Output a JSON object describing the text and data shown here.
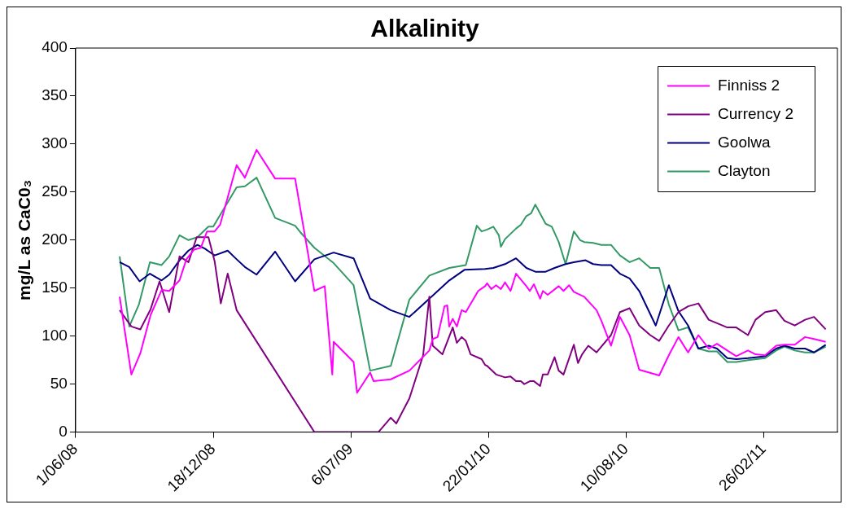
{
  "chart_data": {
    "type": "line",
    "title": "Alkalinity",
    "ylabel": "mg/L as CaC0₃",
    "xlim": [
      "2008-06-01",
      "2011-06-13"
    ],
    "xticks": [
      {
        "value": "2008-06-01",
        "label": "1/06/08"
      },
      {
        "value": "2008-12-18",
        "label": "18/12/08"
      },
      {
        "value": "2009-07-06",
        "label": "6/07/09"
      },
      {
        "value": "2010-01-22",
        "label": "22/01/10"
      },
      {
        "value": "2010-08-10",
        "label": "10/08/10"
      },
      {
        "value": "2011-02-26",
        "label": "26/02/11"
      }
    ],
    "ylim": [
      0,
      400
    ],
    "yticks": [
      0,
      50,
      100,
      150,
      200,
      250,
      300,
      350,
      400
    ],
    "grid": false,
    "legend": "top right",
    "marker": "none",
    "line_style": "solid",
    "series": [
      {
        "name": "Finniss 2",
        "color": "#ff00ff",
        "x": [
          "2008-08-04",
          "2008-08-21",
          "2008-09-03",
          "2008-09-18",
          "2008-10-04",
          "2008-10-15",
          "2008-10-30",
          "2008-11-09",
          "2008-11-20",
          "2008-11-30",
          "2008-12-09",
          "2008-12-20",
          "2008-12-28",
          "2009-01-21",
          "2009-02-02",
          "2009-02-19",
          "2009-03-18",
          "2009-04-16",
          "2009-05-14",
          "2009-05-29",
          "2009-06-09",
          "2009-06-11",
          "2009-07-10",
          "2009-07-15",
          "2009-08-03",
          "2009-08-08",
          "2009-09-02",
          "2009-09-29",
          "2009-10-28",
          "2009-11-02",
          "2009-11-09",
          "2009-11-19",
          "2009-11-23",
          "2009-11-26",
          "2009-12-01",
          "2009-12-07",
          "2009-12-14",
          "2009-12-20",
          "2010-01-07",
          "2010-01-17",
          "2010-01-20",
          "2010-01-26",
          "2010-02-02",
          "2010-02-09",
          "2010-02-15",
          "2010-02-23",
          "2010-03-03",
          "2010-03-18",
          "2010-03-23",
          "2010-03-29",
          "2010-04-07",
          "2010-04-11",
          "2010-04-18",
          "2010-05-04",
          "2010-05-11",
          "2010-05-19",
          "2010-05-26",
          "2010-06-10",
          "2010-06-28",
          "2010-07-05",
          "2010-07-19",
          "2010-08-01",
          "2010-08-15",
          "2010-08-29",
          "2010-09-27",
          "2010-10-11",
          "2010-10-25",
          "2010-11-08",
          "2010-11-23",
          "2010-12-08",
          "2010-12-20",
          "2011-01-04",
          "2011-01-17",
          "2011-02-03",
          "2011-02-14",
          "2011-02-28",
          "2011-03-16",
          "2011-03-28",
          "2011-04-12",
          "2011-04-27",
          "2011-05-10",
          "2011-05-27"
        ],
        "values": [
          141,
          60,
          82,
          122,
          148,
          147,
          158,
          180,
          190,
          192,
          209,
          209,
          216,
          278,
          265,
          294,
          264,
          264,
          147,
          152,
          60,
          94,
          73,
          41,
          62,
          53,
          55,
          64,
          85,
          97,
          99,
          131,
          132,
          110,
          118,
          110,
          127,
          125,
          147,
          152,
          155,
          149,
          153,
          149,
          156,
          147,
          165,
          152,
          147,
          154,
          139,
          147,
          143,
          152,
          147,
          153,
          146,
          141,
          127,
          116,
          90,
          120,
          101,
          65,
          59,
          80,
          99,
          83,
          101,
          87,
          92,
          85,
          79,
          85,
          81,
          80,
          90,
          91,
          91,
          99,
          97,
          94
        ]
      },
      {
        "name": "Currency 2",
        "color": "#800080",
        "x": [
          "2008-08-04",
          "2008-08-21",
          "2008-09-03",
          "2008-09-18",
          "2008-10-01",
          "2008-10-15",
          "2008-10-30",
          "2008-11-12",
          "2008-11-24",
          "2008-12-11",
          "2008-12-20",
          "2008-12-29",
          "2009-01-08",
          "2009-01-21",
          "2009-05-14",
          "2009-08-15",
          "2009-09-02",
          "2009-09-10",
          "2009-09-29",
          "2009-10-19",
          "2009-10-28",
          "2009-11-02",
          "2009-11-16",
          "2009-12-01",
          "2009-12-07",
          "2009-12-14",
          "2009-12-20",
          "2009-12-27",
          "2010-01-12",
          "2010-01-17",
          "2010-01-20",
          "2010-02-02",
          "2010-02-15",
          "2010-02-23",
          "2010-03-03",
          "2010-03-10",
          "2010-03-15",
          "2010-03-23",
          "2010-03-29",
          "2010-04-07",
          "2010-04-11",
          "2010-04-18",
          "2010-04-28",
          "2010-05-04",
          "2010-05-11",
          "2010-05-26",
          "2010-06-01",
          "2010-06-07",
          "2010-06-16",
          "2010-06-28",
          "2010-07-19",
          "2010-08-01",
          "2010-08-15",
          "2010-08-29",
          "2010-09-14",
          "2010-09-27",
          "2010-10-11",
          "2010-10-25",
          "2010-11-08",
          "2010-11-23",
          "2010-12-08",
          "2011-01-04",
          "2011-01-17",
          "2011-02-03",
          "2011-02-14",
          "2011-02-28",
          "2011-03-16",
          "2011-03-28",
          "2011-04-12",
          "2011-04-27",
          "2011-05-10",
          "2011-05-27"
        ],
        "values": [
          127,
          110,
          107,
          128,
          157,
          125,
          183,
          177,
          203,
          203,
          178,
          134,
          165,
          127,
          0,
          0,
          15,
          9,
          35,
          80,
          141,
          90,
          81,
          109,
          93,
          99,
          95,
          81,
          76,
          70,
          69,
          60,
          57,
          58,
          53,
          53,
          50,
          53,
          53,
          48,
          60,
          60,
          78,
          64,
          60,
          91,
          72,
          81,
          90,
          83,
          101,
          125,
          129,
          111,
          101,
          95,
          111,
          125,
          131,
          134,
          117,
          109,
          109,
          101,
          117,
          125,
          127,
          116,
          111,
          117,
          120,
          107
        ]
      },
      {
        "name": "Goolwa",
        "color": "#000080",
        "x": [
          "2008-08-04",
          "2008-08-18",
          "2008-09-02",
          "2008-09-17",
          "2008-10-04",
          "2008-10-15",
          "2008-10-30",
          "2008-11-12",
          "2008-11-25",
          "2008-12-06",
          "2008-12-20",
          "2009-01-08",
          "2009-01-21",
          "2009-02-02",
          "2009-02-19",
          "2009-03-18",
          "2009-04-16",
          "2009-05-14",
          "2009-06-11",
          "2009-07-10",
          "2009-08-03",
          "2009-09-02",
          "2009-09-29",
          "2009-10-28",
          "2009-11-26",
          "2009-12-18",
          "2010-01-17",
          "2010-01-29",
          "2010-02-15",
          "2010-03-03",
          "2010-03-18",
          "2010-03-31",
          "2010-04-15",
          "2010-04-28",
          "2010-05-14",
          "2010-05-26",
          "2010-06-12",
          "2010-06-23",
          "2010-07-05",
          "2010-07-19",
          "2010-08-01",
          "2010-08-15",
          "2010-08-29",
          "2010-09-22",
          "2010-10-11",
          "2010-10-25",
          "2010-11-08",
          "2010-11-23",
          "2010-12-08",
          "2010-12-20",
          "2011-01-04",
          "2011-01-17",
          "2011-02-03",
          "2011-02-28",
          "2011-03-16",
          "2011-03-28",
          "2011-04-12",
          "2011-04-27",
          "2011-05-10",
          "2011-05-27"
        ],
        "values": [
          177,
          172,
          157,
          165,
          158,
          164,
          179,
          189,
          195,
          191,
          184,
          189,
          180,
          172,
          164,
          188,
          157,
          180,
          187,
          181,
          139,
          127,
          120,
          139,
          158,
          169,
          170,
          171,
          175,
          181,
          171,
          167,
          167,
          171,
          175,
          177,
          179,
          175,
          174,
          174,
          165,
          160,
          147,
          111,
          153,
          126,
          111,
          87,
          90,
          87,
          77,
          76,
          77,
          79,
          87,
          90,
          87,
          87,
          83,
          91
        ]
      },
      {
        "name": "Clayton",
        "color": "#339966",
        "x": [
          "2008-08-04",
          "2008-08-18",
          "2008-09-01",
          "2008-09-17",
          "2008-10-04",
          "2008-10-15",
          "2008-10-30",
          "2008-11-12",
          "2008-11-25",
          "2008-12-11",
          "2008-12-18",
          "2009-01-21",
          "2009-02-02",
          "2009-02-19",
          "2009-03-18",
          "2009-04-16",
          "2009-04-25",
          "2009-05-14",
          "2009-06-11",
          "2009-07-10",
          "2009-08-03",
          "2009-09-02",
          "2009-09-29",
          "2009-10-28",
          "2009-11-26",
          "2009-12-20",
          "2010-01-05",
          "2010-01-12",
          "2010-01-20",
          "2010-01-29",
          "2010-02-06",
          "2010-02-09",
          "2010-02-15",
          "2010-03-03",
          "2010-03-10",
          "2010-03-18",
          "2010-03-25",
          "2010-03-31",
          "2010-04-15",
          "2010-04-24",
          "2010-05-04",
          "2010-05-14",
          "2010-05-26",
          "2010-06-04",
          "2010-06-10",
          "2010-06-23",
          "2010-07-05",
          "2010-07-19",
          "2010-08-01",
          "2010-08-15",
          "2010-08-29",
          "2010-09-14",
          "2010-09-27",
          "2010-10-11",
          "2010-10-25",
          "2010-11-08",
          "2010-11-23",
          "2010-12-08",
          "2010-12-20",
          "2011-01-04",
          "2011-01-17",
          "2011-02-03",
          "2011-02-28",
          "2011-03-16",
          "2011-03-28",
          "2011-04-12",
          "2011-04-27",
          "2011-05-10",
          "2011-05-27"
        ],
        "values": [
          183,
          110,
          133,
          177,
          174,
          183,
          205,
          200,
          203,
          214,
          214,
          255,
          256,
          265,
          223,
          215,
          207,
          192,
          176,
          153,
          64,
          69,
          138,
          163,
          171,
          174,
          215,
          209,
          211,
          214,
          205,
          193,
          201,
          212,
          216,
          225,
          228,
          237,
          217,
          214,
          198,
          175,
          209,
          200,
          198,
          197,
          195,
          195,
          184,
          177,
          181,
          171,
          171,
          133,
          106,
          109,
          87,
          84,
          84,
          73,
          73,
          75,
          77,
          85,
          89,
          85,
          83,
          83,
          89
        ]
      }
    ]
  }
}
